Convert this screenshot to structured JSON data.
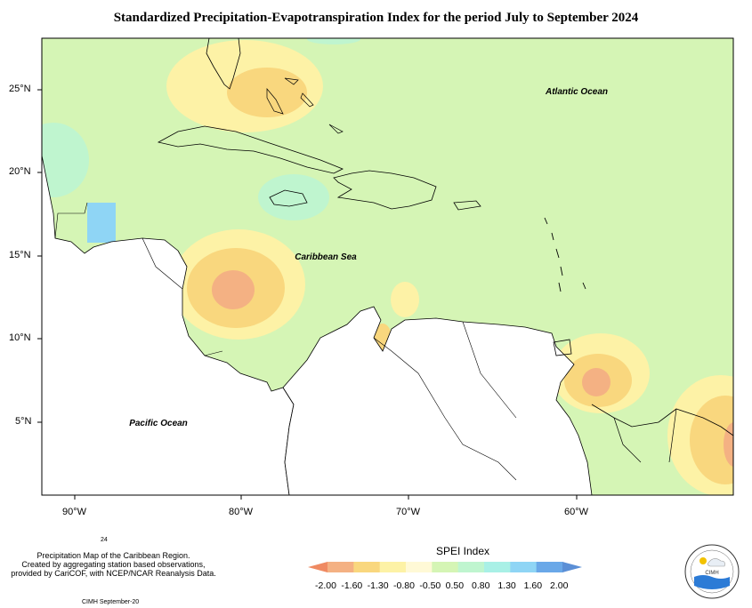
{
  "title": "Standardized Precipitation-Evapotranspiration Index for the period July to September 2024",
  "map": {
    "lat_labels": [
      "25°N",
      "20°N",
      "15°N",
      "10°N",
      "5°N"
    ],
    "lon_labels": [
      "90°W",
      "80°W",
      "70°W",
      "60°W"
    ],
    "region_labels": {
      "atlantic": "Atlantic Ocean",
      "caribbean": "Caribbean Sea",
      "pacific": "Pacific Ocean"
    }
  },
  "legend": {
    "title": "SPEI Index",
    "ticks": [
      "-2.00",
      "-1.60",
      "-1.30",
      "-0.80",
      "-0.50",
      "0.50",
      "0.80",
      "1.30",
      "1.60",
      "2.00"
    ],
    "colors": [
      "#ef8a62",
      "#f4b183",
      "#f9d77e",
      "#fdf2a6",
      "#fff9d6",
      "#d5f5b5",
      "#bff5cf",
      "#a9f0e6",
      "#8fd5f5",
      "#6aa8e8",
      "#5b8fd6"
    ]
  },
  "footer": {
    "page_number": "24",
    "notes": [
      "Precipitation Map of the Caribbean Region.",
      "Created by aggregating station based observations,",
      "provided by CariCOF, with NCEP/NCAR Reanalysis Data."
    ],
    "credit": "CIMH September-20",
    "logo_text": "CIMH"
  }
}
